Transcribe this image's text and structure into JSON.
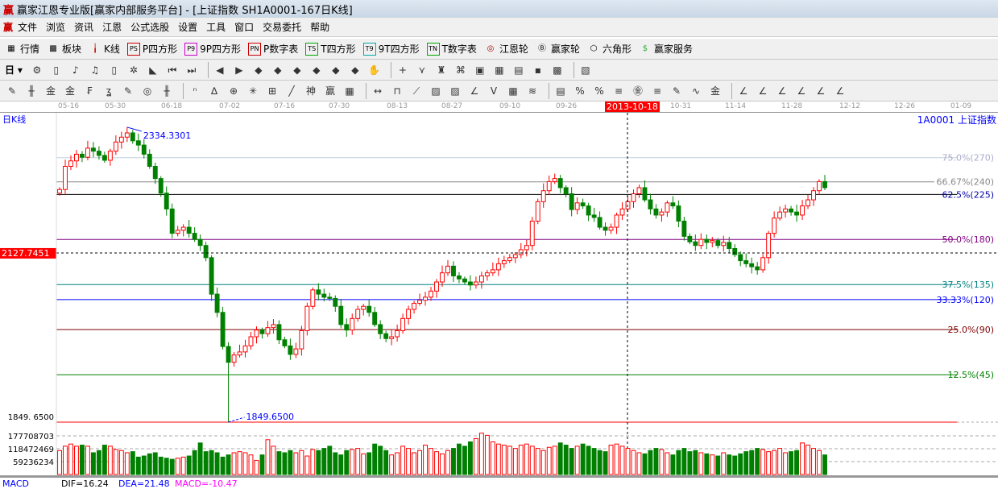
{
  "window": {
    "title": "赢家江恩专业版[赢家内部服务平台] - [上证指数  SH1A0001-167日K线]",
    "logo": "赢"
  },
  "menu": [
    "文件",
    "浏览",
    "资讯",
    "江恩",
    "公式选股",
    "设置",
    "工具",
    "窗口",
    "交易委托",
    "帮助"
  ],
  "toolbar1": [
    {
      "icon": "quote-table-icon",
      "g": "▦",
      "label": "行情"
    },
    {
      "icon": "sector-icon",
      "g": "▩",
      "label": "板块"
    },
    {
      "icon": "kline-icon",
      "g": "╽",
      "label": "K线"
    },
    {
      "icon": "ps-icon",
      "g": "PS",
      "label": "P四方形"
    },
    {
      "icon": "p9-icon",
      "g": "P9",
      "label": "9P四方形"
    },
    {
      "icon": "pn-icon",
      "g": "PN",
      "label": "P数字表"
    },
    {
      "icon": "ts-icon",
      "g": "TS",
      "label": "T四方形"
    },
    {
      "icon": "t9-icon",
      "g": "T9",
      "label": "9T四方形"
    },
    {
      "icon": "tn-icon",
      "g": "TN",
      "label": "T数字表"
    },
    {
      "icon": "gann-wheel-icon",
      "g": "◎",
      "label": "江恩轮"
    },
    {
      "icon": "big-wheel-icon",
      "g": "Ⓑ",
      "label": "赢家轮"
    },
    {
      "icon": "hexagon-icon",
      "g": "⬡",
      "label": "六角形"
    },
    {
      "icon": "dollar-icon",
      "g": "$",
      "label": "赢家服务"
    }
  ],
  "toolbar2": {
    "period": "日",
    "icons": [
      "zoom-icon",
      "clipboard-icon",
      "ma3-icon",
      "ma9-icon",
      "candle-type-icon",
      "pattern-icon",
      "flag-icon",
      "first-icon",
      "last-icon",
      "prev-icon",
      "next-icon",
      "move-left-icon",
      "move-up-icon",
      "expand-h-icon",
      "expand-all-icon",
      "expand-v-icon",
      "expand-icon",
      "hand-icon",
      "crosshair-icon",
      "point-icon",
      "tool-icon",
      "map-icon",
      "calendar-icon",
      "calculator-icon",
      "notes-icon",
      "save-icon",
      "network-icon",
      "print-icon"
    ]
  },
  "toolbar3": {
    "icons": [
      "pen-icon",
      "lines-icon",
      "gold-icon",
      "gold2-icon",
      "fib-icon",
      "spiral-icon",
      "marker-icon",
      "circle-icon",
      "grid-icon",
      "n2-icon",
      "triangle-icon",
      "target-icon",
      "web-icon",
      "square-icon",
      "fan-line-icon",
      "shen-icon",
      "ying-icon",
      "ruler-icon",
      "measure-icon",
      "box-icon",
      "fan-icon",
      "gann-box-icon",
      "gann-box2-icon",
      "angle-icon",
      "v-icon",
      "grid2-icon",
      "parallel-icon",
      "levels-icon",
      "pct-fan-icon",
      "percent-icon",
      "pct-lines-icon",
      "gold-circle-icon",
      "gold-lines-icon",
      "pencil-icon",
      "wave-icon",
      "gold-bar-icon",
      "j-angle-icon",
      "f-angle-icon",
      "gold-angle-icon",
      "shen-angle-icon",
      "ying-angle-icon",
      "si-angle-icon"
    ]
  },
  "time_axis": [
    "05-16",
    "05-30",
    "06-18",
    "07-02",
    "07-16",
    "07-30",
    "08-13",
    "08-27",
    "09-10",
    "09-26",
    "10-31",
    "11-14",
    "11-28",
    "12-12",
    "12-26",
    "01-09"
  ],
  "cursor_date": "2013-10-18",
  "cursor_price": "2127.7451",
  "period_label": "日K线",
  "symbol_label": "1A0001  上证指数",
  "colors": {
    "up": "#ff0000",
    "down": "#008000",
    "cursor_tag": "#ff0000"
  },
  "chart_data": {
    "type": "candlestick",
    "high_label": "2334.3301",
    "high": 2334.33,
    "low_label": "1849.6500",
    "low": 1849.65,
    "low_axis_label": "1849. 6500",
    "fib_levels": [
      {
        "label": "75.0%(270)",
        "price": 2284.3,
        "color": "#c0d0e0"
      },
      {
        "label": "66.67%(240)",
        "price": 2244.6,
        "color": "#888888"
      },
      {
        "label": "62.5%(225)",
        "price": 2223.9,
        "color": "#000000"
      },
      {
        "label": "50.0%(180)",
        "price": 2149.9,
        "color": "#800080"
      },
      {
        "label": "37.5%(135)",
        "price": 2075.8,
        "color": "#008080"
      },
      {
        "label": "33.33%(120)",
        "price": 2051.1,
        "color": "#0000ff"
      },
      {
        "label": "25.0%(90)",
        "price": 2001.7,
        "color": "#800000"
      },
      {
        "label": "12.5%(45)",
        "price": 1927.6,
        "color": "#008000"
      }
    ],
    "close": [
      2232,
      2270,
      2279,
      2290,
      2285,
      2300,
      2295,
      2288,
      2280,
      2295,
      2310,
      2318,
      2325,
      2312,
      2305,
      2290,
      2270,
      2250,
      2226,
      2200,
      2160,
      2165,
      2170,
      2160,
      2150,
      2140,
      2120,
      2060,
      2030,
      1974,
      1948,
      1960,
      1965,
      1975,
      1990,
      2001,
      1995,
      2005,
      2010,
      1985,
      1975,
      1961,
      1970,
      2000,
      2040,
      2067,
      2060,
      2055,
      2053,
      2040,
      2010,
      2001,
      2020,
      2035,
      2040,
      2030,
      2010,
      1995,
      1987,
      1990,
      2000,
      2020,
      2035,
      2045,
      2050,
      2055,
      2065,
      2080,
      2095,
      2106,
      2090,
      2085,
      2080,
      2075,
      2080,
      2090,
      2095,
      2100,
      2110,
      2115,
      2120,
      2125,
      2133,
      2140,
      2180,
      2212,
      2230,
      2245,
      2250,
      2235,
      2225,
      2199,
      2210,
      2205,
      2190,
      2186,
      2170,
      2165,
      2170,
      2190,
      2200,
      2212,
      2225,
      2235,
      2215,
      2200,
      2190,
      2195,
      2210,
      2205,
      2180,
      2155,
      2146,
      2140,
      2150,
      2145,
      2148,
      2140,
      2145,
      2135,
      2125,
      2115,
      2110,
      2105,
      2100,
      2120,
      2160,
      2185,
      2195,
      2200,
      2195,
      2190,
      2205,
      2215,
      2230,
      2245,
      2235
    ],
    "volume_ticks": [
      {
        "label": "177708703",
        "value": 177708703
      },
      {
        "label": "118472469",
        "value": 118472469
      },
      {
        "label": "59236234",
        "value": 59236234
      }
    ],
    "volume": [
      110000000.0,
      130000000.0,
      140000000.0,
      130000000.0,
      135000000.0,
      130000000.0,
      100000000.0,
      110000000.0,
      135000000.0,
      130000000.0,
      115000000.0,
      110000000.0,
      100000000.0,
      105000000.0,
      80000000.0,
      85000000.0,
      95000000.0,
      100000000.0,
      80000000.0,
      75000000.0,
      70000000.0,
      75000000.0,
      80000000.0,
      85000000.0,
      110000000.0,
      145000000.0,
      105000000.0,
      110000000.0,
      100000000.0,
      80000000.0,
      90000000.0,
      100000000.0,
      105000000.0,
      100000000.0,
      90000000.0,
      65000000.0,
      90000000.0,
      160000000.0,
      130000000.0,
      105000000.0,
      100000000.0,
      110000000.0,
      100000000.0,
      110000000.0,
      85000000.0,
      115000000.0,
      110000000.0,
      120000000.0,
      130000000.0,
      100000000.0,
      90000000.0,
      110000000.0,
      115000000.0,
      120000000.0,
      95000000.0,
      100000000.0,
      140000000.0,
      130000000.0,
      110000000.0,
      90000000.0,
      100000000.0,
      130000000.0,
      120000000.0,
      100000000.0,
      110000000.0,
      135000000.0,
      120000000.0,
      105000000.0,
      95000000.0,
      110000000.0,
      120000000.0,
      140000000.0,
      130000000.0,
      150000000.0,
      165000000.0,
      190000000.0,
      180000000.0,
      150000000.0,
      140000000.0,
      135000000.0,
      130000000.0,
      120000000.0,
      135000000.0,
      140000000.0,
      130000000.0,
      120000000.0,
      110000000.0,
      125000000.0,
      130000000.0,
      145000000.0,
      135000000.0,
      120000000.0,
      130000000.0,
      140000000.0,
      130000000.0,
      120000000.0,
      110000000.0,
      105000000.0,
      135000000.0,
      140000000.0,
      130000000.0,
      120000000.0,
      110000000.0,
      100000000.0,
      95000000.0,
      110000000.0,
      120000000.0,
      115000000.0,
      100000000.0,
      90000000.0,
      110000000.0,
      120000000.0,
      105000000.0,
      110000000.0,
      100000000.0,
      95000000.0,
      90000000.0,
      85000000.0,
      100000000.0,
      90000000.0,
      85000000.0,
      95000000.0,
      105000000.0,
      110000000.0,
      120000000.0,
      115000000.0,
      105000000.0,
      110000000.0,
      120000000.0,
      100000000.0,
      105000000.0,
      110000000.0,
      145000000.0,
      135000000.0,
      120000000.0,
      110000000.0,
      90000000.0
    ]
  },
  "macd": {
    "name": "MACD",
    "dif": "DIF=16.24",
    "dea": "DEA=21.48",
    "macd": "MACD=-10.47"
  }
}
